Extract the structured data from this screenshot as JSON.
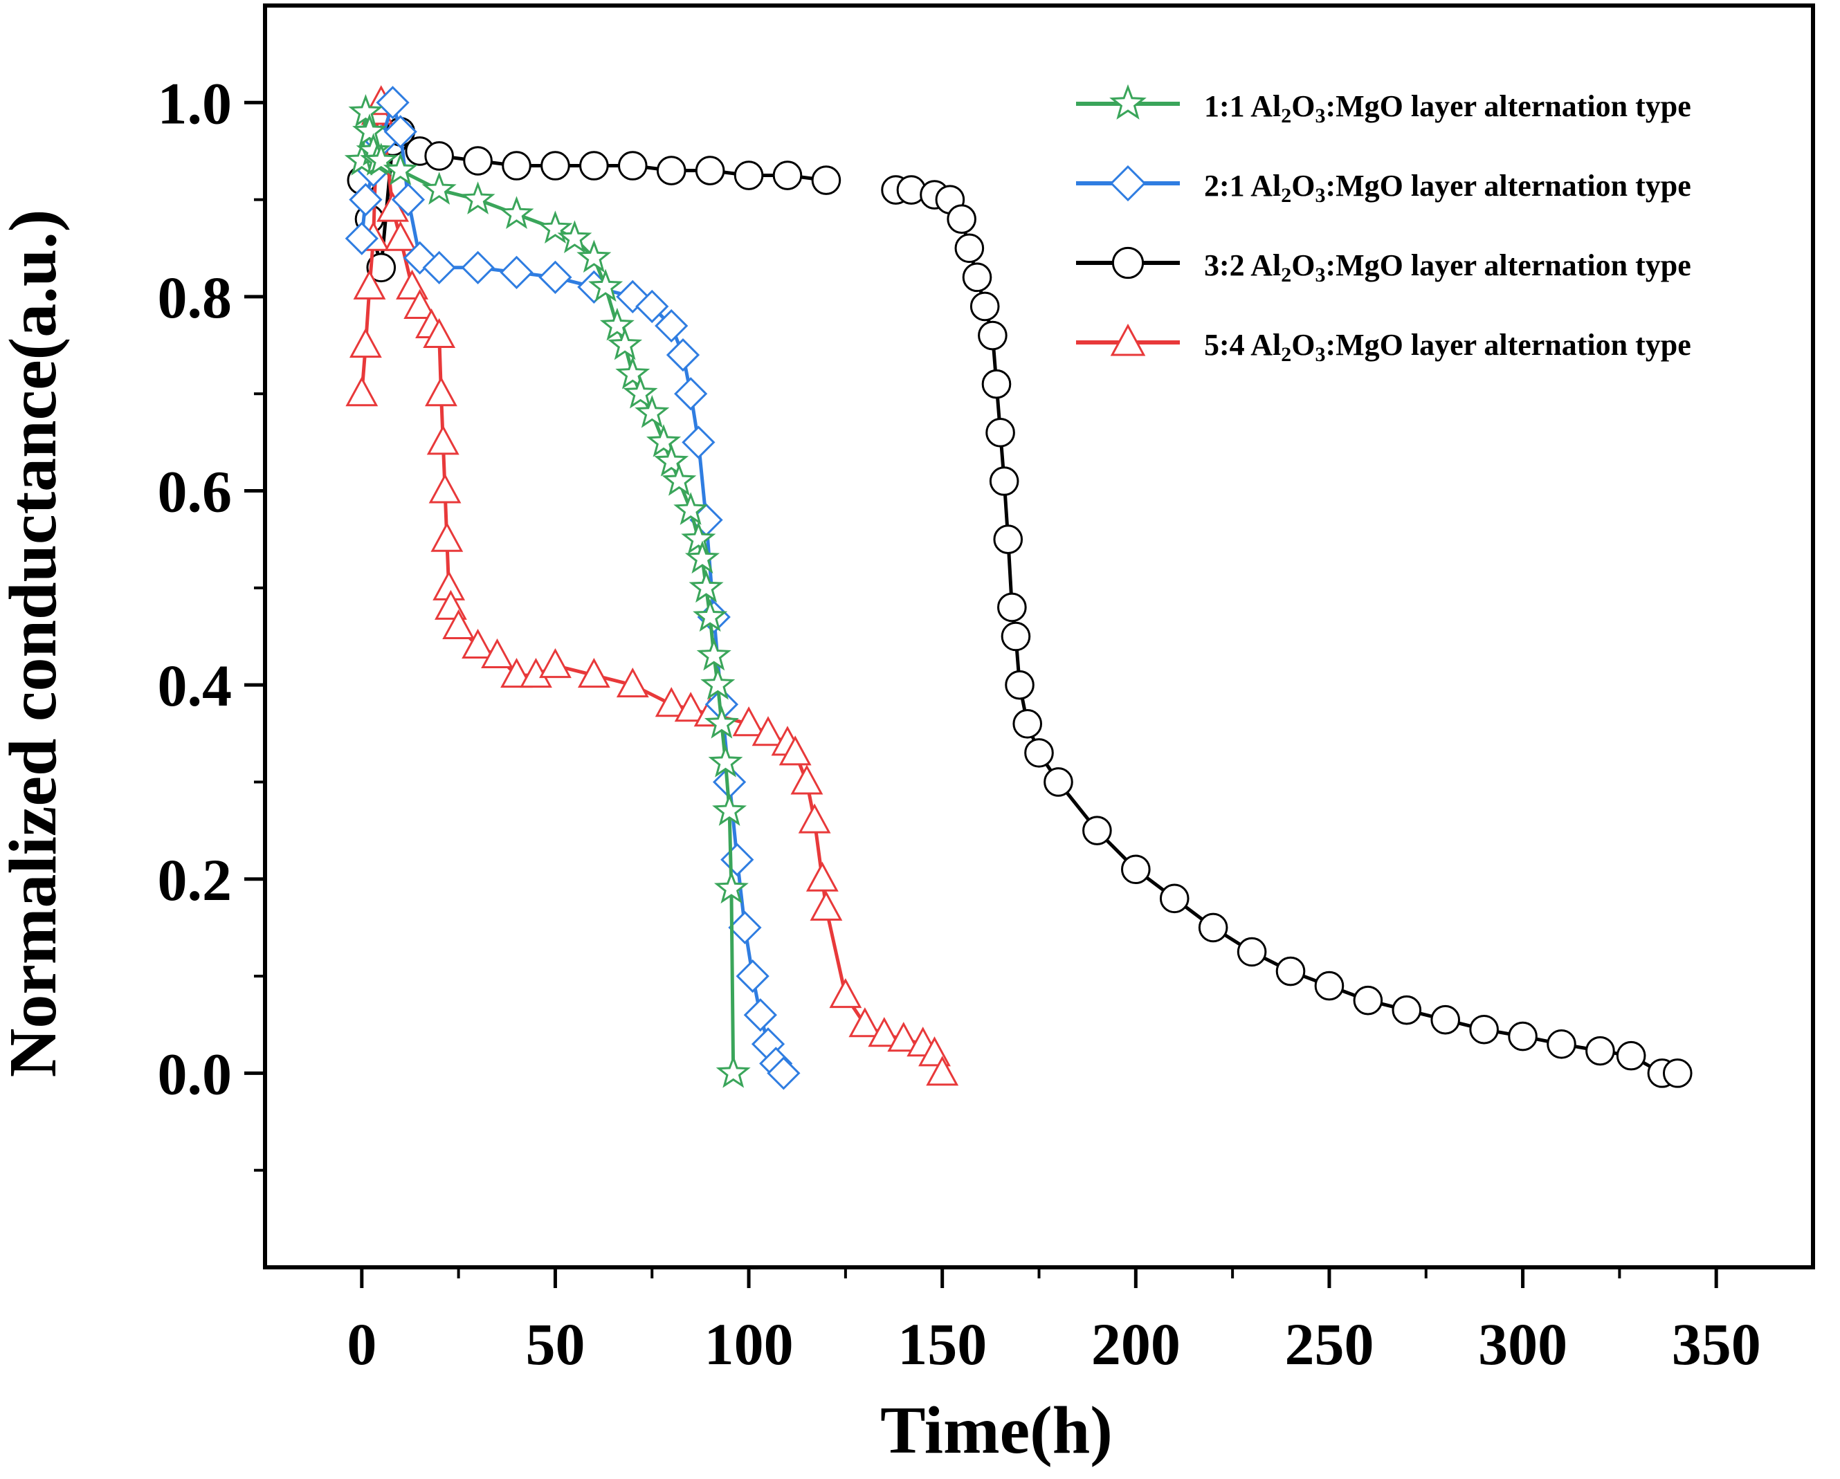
{
  "chart_data": {
    "type": "scatter",
    "title": "",
    "xlabel": "Time(h)",
    "ylabel": "Normalized conductance(a.u.)",
    "xlim": [
      -25,
      375
    ],
    "ylim": [
      -0.2,
      1.1
    ],
    "xticks": [
      0,
      50,
      100,
      150,
      200,
      250,
      300,
      350
    ],
    "yticks": [
      0.0,
      0.2,
      0.4,
      0.6,
      0.8,
      1.0
    ],
    "xtick_labels": [
      "0",
      "50",
      "100",
      "150",
      "200",
      "250",
      "300",
      "350"
    ],
    "ytick_labels": [
      "0.0",
      "0.2",
      "0.4",
      "0.6",
      "0.8",
      "1.0"
    ],
    "grid": false,
    "legend_position": "top-right",
    "series": [
      {
        "name": "1:1 Al2O3:MgO layer alternation type",
        "legend_parts": {
          "ratio": "1:1",
          "a": "Al",
          "sub_a": "2",
          "b": "O",
          "sub_b": "3",
          "rest": ":MgO layer alternation type"
        },
        "color": "#3aa55a",
        "marker": "star",
        "x": [
          0,
          1,
          2,
          3,
          4,
          5,
          10,
          20,
          30,
          40,
          50,
          55,
          60,
          63,
          66,
          68,
          70,
          72,
          75,
          78,
          80,
          82,
          85,
          87,
          88,
          89,
          90,
          91,
          92,
          93,
          94,
          95,
          95.5,
          96
        ],
        "y": [
          0.94,
          0.99,
          0.97,
          0.95,
          0.94,
          0.94,
          0.93,
          0.91,
          0.9,
          0.885,
          0.87,
          0.86,
          0.84,
          0.81,
          0.77,
          0.75,
          0.72,
          0.7,
          0.68,
          0.65,
          0.63,
          0.61,
          0.58,
          0.55,
          0.53,
          0.5,
          0.47,
          0.43,
          0.4,
          0.36,
          0.32,
          0.27,
          0.19,
          0.0
        ]
      },
      {
        "name": "2:1 Al2O3:MgO layer alternation type",
        "legend_parts": {
          "ratio": "2:1",
          "a": "Al",
          "sub_a": "2",
          "b": "O",
          "sub_b": "3",
          "rest": ":MgO layer alternation type"
        },
        "color": "#2f7de1",
        "marker": "diamond",
        "x": [
          0,
          1,
          3,
          5,
          8,
          10,
          12,
          15,
          20,
          30,
          40,
          50,
          60,
          70,
          75,
          80,
          83,
          85,
          87,
          89,
          91,
          93,
          95,
          97,
          99,
          101,
          103,
          105,
          107,
          109
        ],
        "y": [
          0.86,
          0.9,
          0.93,
          0.96,
          1.0,
          0.97,
          0.9,
          0.84,
          0.83,
          0.83,
          0.825,
          0.82,
          0.81,
          0.8,
          0.79,
          0.77,
          0.74,
          0.7,
          0.65,
          0.57,
          0.47,
          0.38,
          0.3,
          0.22,
          0.15,
          0.1,
          0.06,
          0.03,
          0.01,
          0.0
        ]
      },
      {
        "name": "3:2 Al2O3:MgO layer alternation type",
        "legend_parts": {
          "ratio": "3:2",
          "a": "Al",
          "sub_a": "2",
          "b": "O",
          "sub_b": "3",
          "rest": ":MgO layer alternation type"
        },
        "color": "#000000",
        "marker": "circle",
        "x": [
          0,
          2,
          5,
          8,
          10,
          15,
          20,
          30,
          40,
          50,
          60,
          70,
          80,
          90,
          100,
          110,
          120,
          138,
          142,
          148,
          152,
          155,
          157,
          159,
          161,
          163,
          164,
          165,
          166,
          167,
          168,
          169,
          170,
          172,
          175,
          180,
          190,
          200,
          210,
          220,
          230,
          240,
          250,
          260,
          270,
          280,
          290,
          300,
          310,
          320,
          328,
          336,
          340
        ],
        "y": [
          0.92,
          0.88,
          0.83,
          0.96,
          0.97,
          0.95,
          0.945,
          0.94,
          0.935,
          0.935,
          0.935,
          0.935,
          0.93,
          0.93,
          0.925,
          0.925,
          0.92,
          0.91,
          0.91,
          0.905,
          0.9,
          0.88,
          0.85,
          0.82,
          0.79,
          0.76,
          0.71,
          0.66,
          0.61,
          0.55,
          0.48,
          0.45,
          0.4,
          0.36,
          0.33,
          0.3,
          0.25,
          0.21,
          0.18,
          0.15,
          0.125,
          0.105,
          0.09,
          0.075,
          0.065,
          0.055,
          0.045,
          0.038,
          0.03,
          0.023,
          0.018,
          0.0,
          0.0
        ]
      },
      {
        "name": "5:4 Al2O3:MgO layer alternation type",
        "legend_parts": {
          "ratio": "5:4",
          "a": "Al",
          "sub_a": "2",
          "b": "O",
          "sub_b": "3",
          "rest": ":MgO layer alternation type"
        },
        "color": "#e8393a",
        "marker": "triangle",
        "x": [
          0,
          1,
          2,
          3,
          4,
          5,
          8,
          10,
          13,
          15,
          18,
          20,
          20.5,
          21,
          21.5,
          22,
          22.5,
          23,
          25,
          30,
          35,
          40,
          45,
          50,
          60,
          70,
          80,
          85,
          90,
          100,
          105,
          110,
          112,
          115,
          117,
          119,
          120,
          125,
          130,
          135,
          140,
          145,
          148,
          150
        ],
        "y": [
          0.7,
          0.75,
          0.81,
          0.86,
          0.99,
          1.0,
          0.89,
          0.86,
          0.81,
          0.79,
          0.77,
          0.76,
          0.7,
          0.65,
          0.6,
          0.55,
          0.5,
          0.48,
          0.46,
          0.44,
          0.43,
          0.41,
          0.41,
          0.42,
          0.41,
          0.4,
          0.38,
          0.375,
          0.37,
          0.36,
          0.35,
          0.34,
          0.33,
          0.3,
          0.26,
          0.2,
          0.17,
          0.08,
          0.05,
          0.04,
          0.035,
          0.03,
          0.02,
          0.0
        ]
      }
    ]
  }
}
